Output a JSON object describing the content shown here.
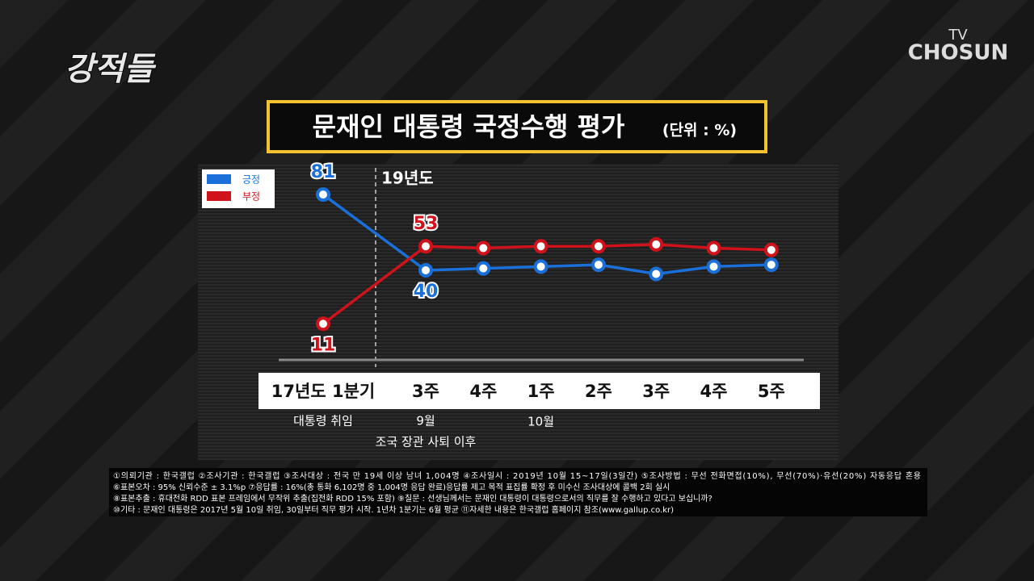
{
  "header": {
    "program": "강적들",
    "channel_top": "TV",
    "channel": "CHOSUN"
  },
  "chart_data": {
    "type": "line",
    "title": "문재인 대통령 국정수행 평가",
    "unit": "(단위 : %)",
    "categories": [
      "17년도 1분기",
      "3주",
      "4주",
      "1주",
      "2주",
      "3주",
      "4주",
      "5주"
    ],
    "series": [
      {
        "name": "긍정",
        "color": "#1a6fd8",
        "values": [
          81,
          40,
          41,
          42,
          43,
          38,
          42,
          43
        ]
      },
      {
        "name": "부정",
        "color": "#d0121b",
        "values": [
          11,
          53,
          52,
          53,
          53,
          54,
          52,
          51
        ]
      }
    ],
    "labeled_indices": [
      0,
      1
    ],
    "ylim": [
      5,
      85
    ],
    "divider_label": "19년도",
    "annotations": [
      "대통령 취임",
      "9월",
      "10월",
      "조국 장관 사퇴 이후"
    ],
    "footnotes": [
      "①의뢰기관 : 한국갤럽 ②조사기관 : 한국갤럽 ③조사대상 : 전국 만 19세 이상 남녀 1,004명 ④조사일시 : 2019년 10월 15~17일(3일간) ⑤조사방법 : 무선 전화면접(10%), 무선(70%)·유선(20%) 자동응답 혼용",
      "⑥표본오차 : 95% 신뢰수준 ± 3.1%p ⑦응답률 : 16%(총 통화 6,102명 중 1,004명 응답 완료)응답률 제고 목적 표집률 확정 후 미수신 조사대상에 콜백 2회 실시",
      "⑧표본추출 : 휴대전화 RDD 표본 프레임에서 무작위 추출(집전화 RDD 15% 포함) ⑨질문 : 선생님께서는 문재인 대통령이 대통령으로서의 직무를 잘 수행하고 있다고 보십니까?",
      "⑩기타 : 문재인 대통령은 2017년 5월 10일 취임, 30일부터 직무 평가 시작. 1년차 1분기는 6월 평균 ⑪자세한 내용은 한국갤럽 홈페이지 참조(www.gallup.co.kr)"
    ]
  }
}
